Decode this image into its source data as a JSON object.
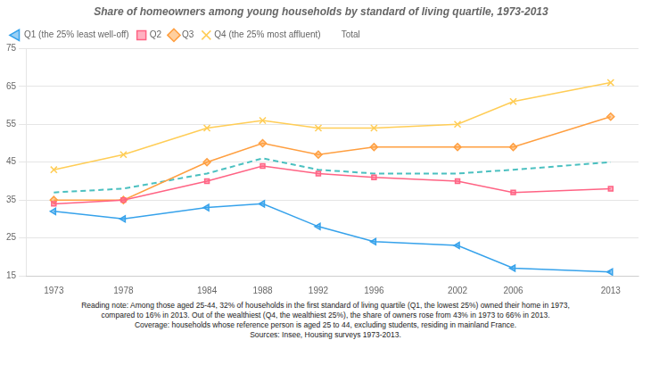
{
  "chart_data": {
    "type": "line",
    "title": "Share of homeowners among young households by standard of living quartile, 1973-2013",
    "annotations": [
      "Reading note: Among those aged 25-44, 32% of households in the first standard of living quartile (Q1, the lowest 25%) owned their home in 1973,",
      "compared to 16% in 2013. Out of the wealthiest (Q4, the wealthiest 25%), the share of owners rose from 43% in 1973 to 66% in 2013.",
      "Coverage: households whose reference person is aged 25 to 44, excluding students, residing in mainland France.",
      "Sources: Insee, Housing surveys 1973-2013."
    ],
    "x": [
      1973,
      1978,
      1984,
      1988,
      1992,
      1996,
      2002,
      2006,
      2013
    ],
    "series": [
      {
        "name": "Q1 (the 25% least well-off)",
        "marker": "triangle_left",
        "line_style": "solid",
        "values": [
          32,
          30,
          33,
          34,
          28,
          24,
          23,
          17,
          16
        ]
      },
      {
        "name": "Q2",
        "marker": "square",
        "line_style": "solid",
        "values": [
          34,
          35,
          40,
          44,
          42,
          41,
          40,
          37,
          38
        ]
      },
      {
        "name": "Q3",
        "marker": "diamond",
        "line_style": "solid",
        "values": [
          35,
          35,
          45,
          50,
          47,
          49,
          49,
          49,
          57
        ]
      },
      {
        "name": "Q4 (the 25% most affluent)",
        "marker": "x",
        "line_style": "solid",
        "values": [
          43,
          47,
          54,
          56,
          54,
          54,
          55,
          61,
          66
        ]
      },
      {
        "name": "Total",
        "marker": "none",
        "line_style": "dashed",
        "values": [
          37,
          38,
          42,
          46,
          43,
          42,
          42,
          43,
          45
        ]
      }
    ],
    "xlim": [
      1971,
      2015
    ],
    "xticks": [
      1973,
      1978,
      1984,
      1988,
      1992,
      1996,
      2002,
      2006,
      2013
    ],
    "ylim": [
      15,
      75
    ],
    "yticks": [
      15,
      25,
      35,
      45,
      55,
      65,
      75
    ],
    "grid": "y",
    "legend": "upper left"
  }
}
